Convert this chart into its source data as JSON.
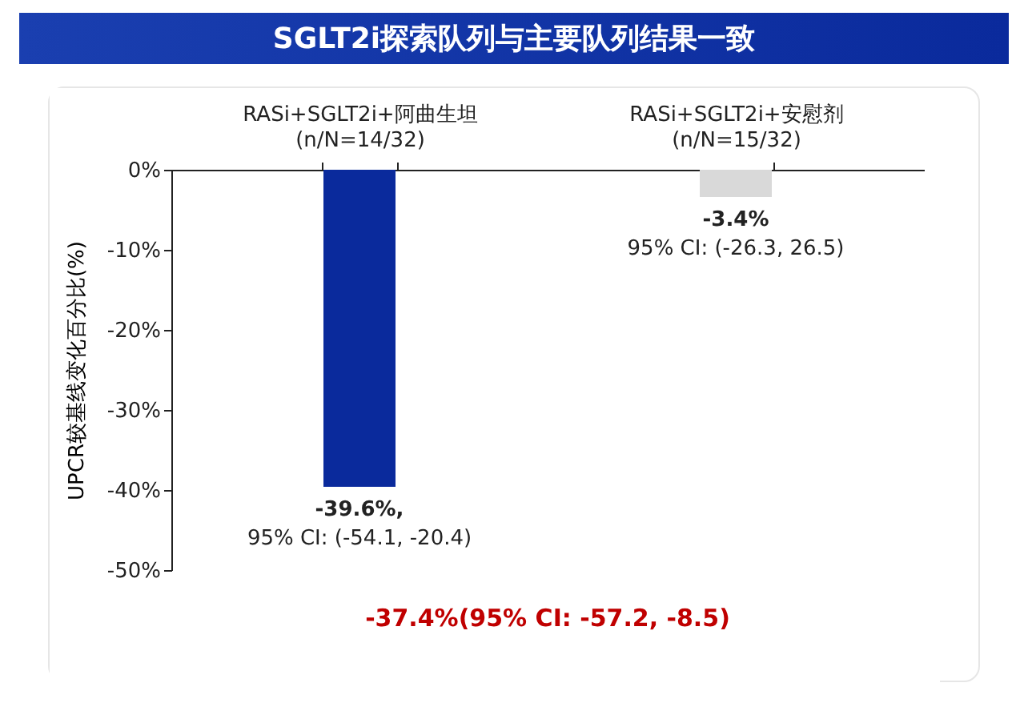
{
  "chart_data": {
    "type": "bar",
    "title": "SGLT2i探索队列与主要队列结果一致",
    "ylabel": "UPCR较基线变化百分比(%)",
    "categories": [
      "RASi+SGLT2i+阿曲生坦\n(n/N=14/32)",
      "RASi+SGLT2i+安慰剂\n(n/N=15/32)"
    ],
    "values": [
      -39.6,
      -3.4
    ],
    "colors": [
      "#0a2a9c",
      "#d9d9d9"
    ],
    "value_labels": [
      "-39.6%,",
      "-3.4%"
    ],
    "ylim": [
      -50,
      0
    ],
    "yticks": [
      {
        "value": 0,
        "label": "0%"
      },
      {
        "value": -10,
        "label": "-10%"
      },
      {
        "value": -20,
        "label": "-20%"
      },
      {
        "value": -30,
        "label": "-30%"
      },
      {
        "value": -40,
        "label": "-40%"
      },
      {
        "value": -50,
        "label": "-50%"
      }
    ],
    "grid": false,
    "legend": false,
    "annotations": [
      {
        "text": "95% CI: (-54.1, -20.4)",
        "x": "RASi+SGLT2i+阿曲生坦\n(n/N=14/32)",
        "y": -39.6
      },
      {
        "text": "95% CI: (-26.3, 26.5)",
        "x": "RASi+SGLT2i+安慰剂\n(n/N=15/32)",
        "y": -3.4
      },
      "-37.4%(95% CI: -57.2, -8.5)"
    ]
  }
}
